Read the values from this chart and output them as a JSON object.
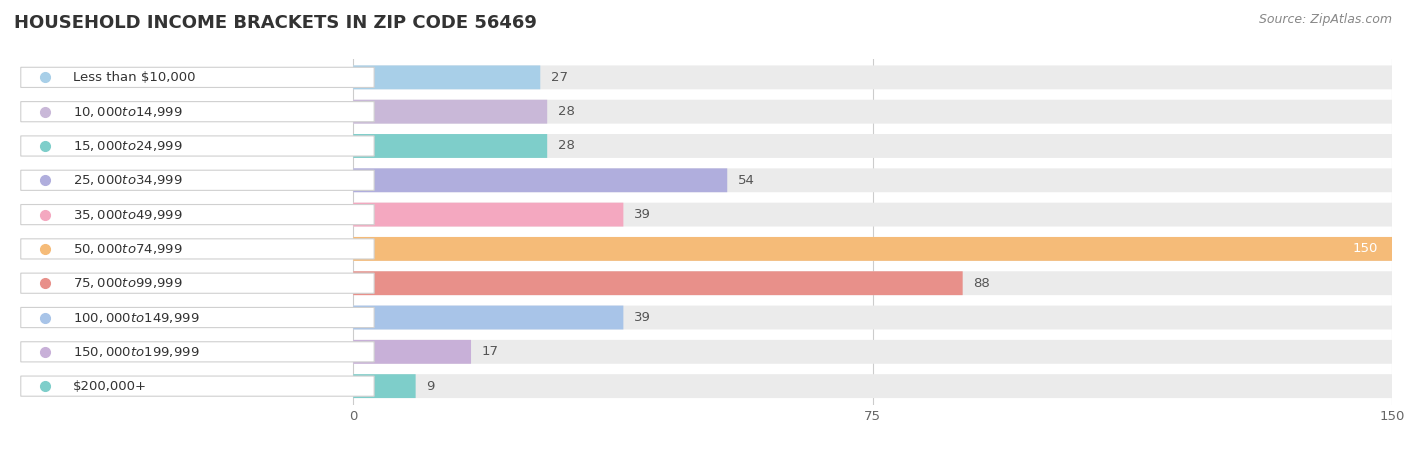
{
  "title": "HOUSEHOLD INCOME BRACKETS IN ZIP CODE 56469",
  "source": "Source: ZipAtlas.com",
  "categories": [
    "Less than $10,000",
    "$10,000 to $14,999",
    "$15,000 to $24,999",
    "$25,000 to $34,999",
    "$35,000 to $49,999",
    "$50,000 to $74,999",
    "$75,000 to $99,999",
    "$100,000 to $149,999",
    "$150,000 to $199,999",
    "$200,000+"
  ],
  "values": [
    27,
    28,
    28,
    54,
    39,
    150,
    88,
    39,
    17,
    9
  ],
  "bar_colors": [
    "#a8cfe8",
    "#c9b8d8",
    "#7ececa",
    "#b0aedd",
    "#f4a8c0",
    "#f5bb78",
    "#e8908a",
    "#a8c4e8",
    "#c8b0d8",
    "#7ececa"
  ],
  "background_color": "#ffffff",
  "bar_background_color": "#ebebeb",
  "xlim_data": [
    0,
    150
  ],
  "xticks": [
    0,
    75,
    150
  ],
  "title_fontsize": 13,
  "label_fontsize": 9.5,
  "value_fontsize": 9.5,
  "bar_height": 0.68
}
